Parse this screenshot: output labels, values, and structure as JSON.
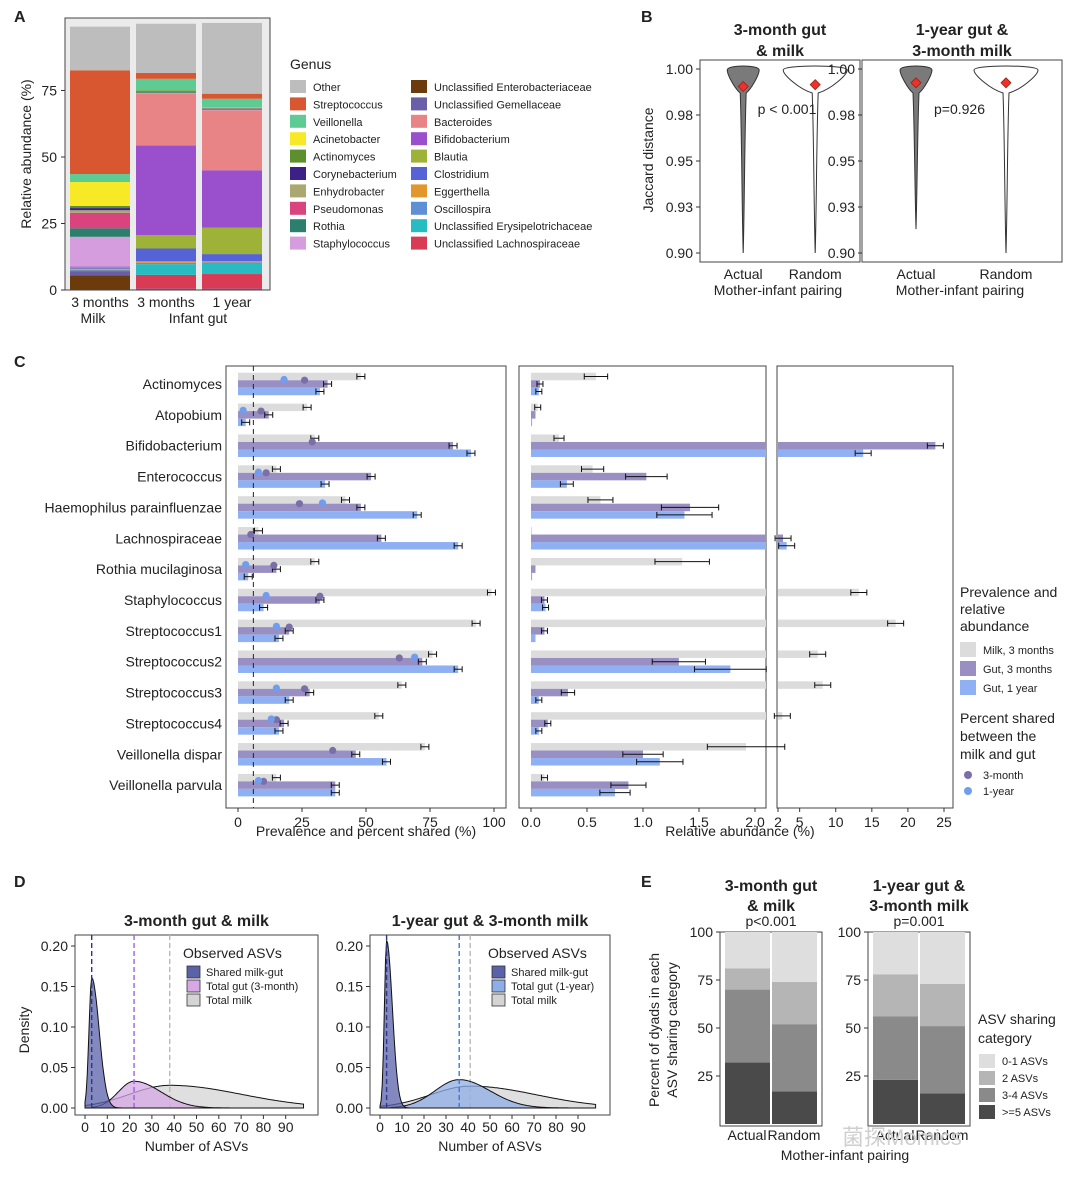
{
  "chart_data": [
    {
      "panel": "A",
      "type": "bar",
      "stacked": true,
      "ylabel": "Relative abundance (%)",
      "ylim": [
        0,
        100
      ],
      "yticks": [
        0,
        25,
        50,
        75
      ],
      "categories": [
        "3 months",
        "3 months",
        "1 year"
      ],
      "group_labels": [
        "Milk",
        "Infant gut"
      ],
      "legend_title": "Genus",
      "series": [
        {
          "name": "Unclassified Enterobacteriaceae",
          "color": "#6b3b0c",
          "values": [
            5.5,
            0.2,
            0.2
          ]
        },
        {
          "name": "Unclassified Gemellaceae",
          "color": "#6a5ea8",
          "values": [
            1.5,
            0.3,
            0.3
          ]
        },
        {
          "name": "Unclassified Lachnospiraceae",
          "color": "#d93a54",
          "values": [
            0.3,
            5.2,
            5.5
          ]
        },
        {
          "name": "Unclassified Erysipelotrichaceae",
          "color": "#26bcc2",
          "values": [
            0.3,
            4.0,
            3.8
          ]
        },
        {
          "name": "Oscillospira",
          "color": "#5f8fd4",
          "values": [
            0.2,
            0.5,
            0.6
          ]
        },
        {
          "name": "Eggerthella",
          "color": "#e3962c",
          "values": [
            0.2,
            0.6,
            0.5
          ]
        },
        {
          "name": "Clostridium",
          "color": "#5663d6",
          "values": [
            0.3,
            4.8,
            2.6
          ]
        },
        {
          "name": "Blautia",
          "color": "#9db237",
          "values": [
            0.2,
            5.0,
            10.0
          ]
        },
        {
          "name": "Bifidobacterium",
          "color": "#9a4fcc",
          "values": [
            0.3,
            33.7,
            21.5
          ]
        },
        {
          "name": "Bacteroides",
          "color": "#e88486",
          "values": [
            0.0,
            19.6,
            22.5
          ]
        },
        {
          "name": "Staphylococcus",
          "color": "#d59ddd",
          "values": [
            11.2,
            0.2,
            0.2
          ]
        },
        {
          "name": "Rothia",
          "color": "#2d7f6d",
          "values": [
            3.2,
            0.3,
            0.2
          ]
        },
        {
          "name": "Pseudomonas",
          "color": "#d9447f",
          "values": [
            5.8,
            0.2,
            0.2
          ]
        },
        {
          "name": "Enhydrobacter",
          "color": "#aaa770",
          "values": [
            1.0,
            0.1,
            0.1
          ]
        },
        {
          "name": "Corynebacterium",
          "color": "#3d1f88",
          "values": [
            0.8,
            0.1,
            0.1
          ]
        },
        {
          "name": "Actinomyces",
          "color": "#5d8f2c",
          "values": [
            0.8,
            0.2,
            0.2
          ]
        },
        {
          "name": "Acinetobacter",
          "color": "#f7e925",
          "values": [
            9.0,
            0.1,
            0.1
          ]
        },
        {
          "name": "Veillonella",
          "color": "#5ecb94",
          "values": [
            3.0,
            4.3,
            3.3
          ]
        },
        {
          "name": "Streptococcus",
          "color": "#d95730",
          "values": [
            39.0,
            2.2,
            1.9
          ]
        },
        {
          "name": "Other",
          "color": "#bdbdbd",
          "values": [
            16.4,
            18.5,
            26.6
          ]
        }
      ],
      "legend_col1": [
        "Other",
        "Streptococcus",
        "Veillonella",
        "Acinetobacter",
        "Actinomyces",
        "Corynebacterium",
        "Enhydrobacter",
        "Pseudomonas",
        "Rothia",
        "Staphylococcus"
      ],
      "legend_col2": [
        "Unclassified Enterobacteriaceae",
        "Unclassified Gemellaceae",
        "Bacteroides",
        "Bifidobacterium",
        "Blautia",
        "Clostridium",
        "Eggerthella",
        "Oscillospira",
        "Unclassified Erysipelotrichaceae",
        "Unclassified Lachnospiraceae"
      ]
    },
    {
      "panel": "B",
      "type": "violin",
      "ylabel": "Jaccard distance",
      "xlabel": "Mother-infant pairing",
      "ylim": [
        0.9,
        1.0
      ],
      "yticks": [
        "0.90",
        "0.93",
        "0.95",
        "0.98",
        "1.00"
      ],
      "ytick_values": [
        0.9,
        0.925,
        0.95,
        0.975,
        1.0
      ],
      "categories": [
        "Actual",
        "Random"
      ],
      "facets": [
        {
          "title_line1": "3-month gut",
          "title_line2": "& milk",
          "pvalue": "p < 0.001",
          "actual_min": 0.9,
          "random_min": 0.9,
          "actual_median": 0.9905,
          "random_median": 0.9915
        },
        {
          "title_line1": "1-year gut &",
          "title_line2": "3-month milk",
          "pvalue": "p=0.926",
          "actual_min": 0.913,
          "random_min": 0.9,
          "actual_median": 0.9925,
          "random_median": 0.9925
        }
      ]
    },
    {
      "panel": "C",
      "type": "bar",
      "orientation": "horizontal",
      "categories": [
        "Actinomyces",
        "Atopobium",
        "Bifidobacterium",
        "Enterococcus",
        "Haemophilus parainfluenzae",
        "Lachnospiraceae",
        "Rothia mucilaginosa",
        "Staphylococcus",
        "Streptococcus1",
        "Streptococcus2",
        "Streptococcus3",
        "Streptococcus4",
        "Veillonella dispar",
        "Veillonella parvula"
      ],
      "series_names": [
        "Milk, 3 months",
        "Gut, 3 months",
        "Gut, 1 year"
      ],
      "series_colors": [
        "#dcdcdc",
        "#9a8fc3",
        "#8fb0f2"
      ],
      "shared_names": [
        "3-month",
        "1-year"
      ],
      "shared_colors": [
        "#7a6fa8",
        "#6f9ef0"
      ],
      "prevalence": {
        "xlabel": "Prevalence and percent shared (%)",
        "xlim": [
          0,
          100
        ],
        "xticks": [
          0,
          25,
          50,
          75,
          100
        ],
        "dashed_line": 6,
        "milk": [
          48,
          27,
          30,
          15,
          42,
          8,
          30,
          99,
          93,
          76,
          64,
          55,
          73,
          15
        ],
        "gut3": [
          35,
          12,
          84,
          52,
          48,
          56,
          15,
          32,
          20,
          72,
          28,
          18,
          46,
          38
        ],
        "gut1": [
          32,
          3,
          91,
          34,
          70,
          86,
          4,
          10,
          16,
          86,
          20,
          16,
          58,
          38
        ],
        "shared3": [
          26,
          9,
          29,
          11,
          24,
          5,
          14,
          32,
          20,
          63,
          26,
          15,
          37,
          10
        ],
        "shared1": [
          18,
          2,
          null,
          8,
          33,
          null,
          3,
          11,
          15,
          69,
          15,
          13,
          null,
          8
        ]
      },
      "abundance": {
        "xlabel": "Relative abundance (%)",
        "xlim_left": [
          0,
          2.2
        ],
        "xticks_left": [
          "0.0",
          "0.5",
          "1.0",
          "1.5",
          "2.0"
        ],
        "xticks_left_values": [
          0,
          0.5,
          1.0,
          1.5,
          2.0
        ],
        "xlim_right": [
          2,
          26.5
        ],
        "xticks_right": [
          "2",
          "5",
          "10",
          "15",
          "20",
          "25"
        ],
        "xticks_right_values": [
          2,
          5,
          10,
          15,
          20,
          25
        ],
        "milk": [
          0.58,
          0.06,
          0.25,
          0.55,
          0.62,
          0.01,
          1.35,
          13.2,
          18.3,
          7.5,
          8.2,
          2.6,
          1.92,
          0.12
        ],
        "gut3": [
          0.08,
          0.04,
          23.8,
          1.03,
          1.42,
          2.7,
          0.04,
          0.12,
          0.12,
          1.32,
          0.33,
          0.15,
          1.0,
          0.87
        ],
        "gut1": [
          0.07,
          0.01,
          13.8,
          0.32,
          1.37,
          3.2,
          0.01,
          0.13,
          0.04,
          1.78,
          0.07,
          0.07,
          1.15,
          0.75
        ]
      },
      "legend_title1": [
        "Prevalence and",
        "relative",
        "abundance"
      ],
      "legend_title2": [
        "Percent shared",
        "between the",
        "milk and gut"
      ]
    },
    {
      "panel": "D",
      "type": "area",
      "xlabel": "Number of ASVs",
      "ylabel": "Density",
      "xlim": [
        0,
        100
      ],
      "xticks": [
        0,
        10,
        20,
        30,
        40,
        50,
        60,
        70,
        80,
        90
      ],
      "ylim": [
        0,
        0.2
      ],
      "yticks": [
        "0.00",
        "0.05",
        "0.10",
        "0.15",
        "0.20"
      ],
      "ytick_values": [
        0,
        0.05,
        0.1,
        0.15,
        0.2
      ],
      "legend_title": "Observed ASVs",
      "facets": [
        {
          "title": "3-month gut & milk",
          "series": [
            {
              "name": "Total milk",
              "color": "#d4d4d4",
              "mean": 38,
              "peak": 0.028,
              "sd_left": 18,
              "sd_right": 32,
              "min": 0,
              "max": 98,
              "line_color": "#b8b8b8"
            },
            {
              "name": "Total gut (3-month)",
              "color": "#d6a8e6",
              "mean": 22,
              "peak": 0.033,
              "sd_left": 7,
              "sd_right": 12,
              "min": 3,
              "max": 70,
              "line_color": "#a060e0"
            },
            {
              "name": "Shared milk-gut",
              "color": "#5a62a8",
              "mean": 3,
              "peak": 0.161,
              "sd_left": 1.2,
              "sd_right": 3.3,
              "min": 0,
              "max": 30,
              "line_color": "#2a3690"
            }
          ]
        },
        {
          "title": "1-year gut & 3-month milk",
          "series": [
            {
              "name": "Total milk",
              "color": "#d4d4d4",
              "mean": 41,
              "peak": 0.027,
              "sd_left": 18,
              "sd_right": 30,
              "min": 0,
              "max": 98,
              "line_color": "#b8b8b8"
            },
            {
              "name": "Total gut (1-year)",
              "color": "#8eaee6",
              "mean": 36,
              "peak": 0.035,
              "sd_left": 11,
              "sd_right": 14,
              "min": 5,
              "max": 88,
              "line_color": "#3e78d8"
            },
            {
              "name": "Shared milk-gut",
              "color": "#5a62a8",
              "mean": 3,
              "peak": 0.207,
              "sd_left": 1.0,
              "sd_right": 2.6,
              "min": 0,
              "max": 30,
              "line_color": "#2a3690"
            }
          ]
        }
      ]
    },
    {
      "panel": "E",
      "type": "bar",
      "stacked": true,
      "ylabel_line1": "Percent of dyads in each",
      "ylabel_line2": "ASV sharing category",
      "xlabel": "Mother-infant pairing",
      "ylim": [
        0,
        100
      ],
      "yticks": [
        25,
        50,
        75,
        100
      ],
      "categories": [
        "Actual",
        "Random"
      ],
      "legend_title": [
        "ASV sharing",
        "category"
      ],
      "legend": [
        "0-1 ASVs",
        "2 ASVs",
        "3-4 ASVs",
        ">=5 ASVs"
      ],
      "colors": [
        ">=5:#4a4a4a",
        "3-4:#8a8a8a",
        "2:#b5b5b5",
        "0-1:#dedede"
      ],
      "facets": [
        {
          "title_line1": "3-month gut",
          "title_line2": "& milk",
          "pvalue": "p<0.001",
          "actual": {
            ">=5": 32,
            "3-4": 38,
            "2": 11,
            "0-1": 19
          },
          "random": {
            ">=5": 17,
            "3-4": 35,
            "2": 22,
            "0-1": 26
          }
        },
        {
          "title_line1": "1-year gut &",
          "title_line2": "3-month milk",
          "pvalue": "p=0.001",
          "actual": {
            ">=5": 23,
            "3-4": 33,
            "2": 22,
            "0-1": 22
          },
          "random": {
            ">=5": 16,
            "3-4": 35,
            "2": 22,
            "0-1": 27
          }
        }
      ]
    }
  ],
  "panel_labels": [
    "A",
    "B",
    "C",
    "D",
    "E"
  ],
  "watermark": "菌探Momics"
}
